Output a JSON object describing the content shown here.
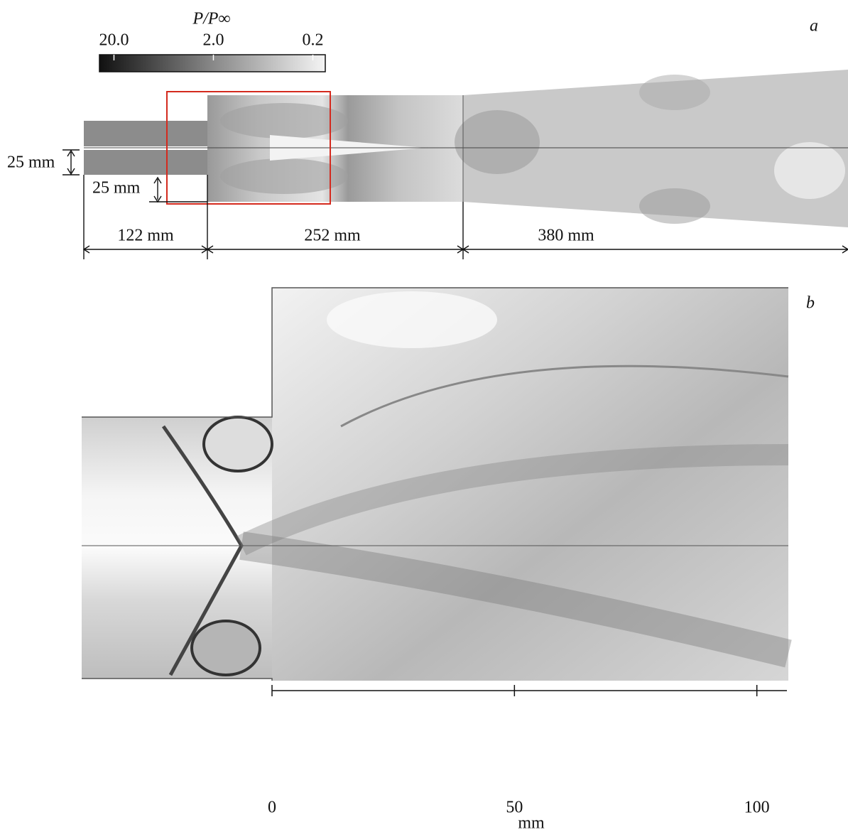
{
  "panel_a": {
    "label": "a",
    "colorbar": {
      "title": "P/P∞",
      "log": true,
      "lim": [
        28,
        0.15
      ],
      "ticks": [
        {
          "value": 20,
          "label": "20.0"
        },
        {
          "value": 2,
          "label": "2.0"
        },
        {
          "value": 0.2,
          "label": "0.2"
        }
      ]
    },
    "dimensions": {
      "inlet_height": "25 mm",
      "step_height": "25 mm",
      "inlet_length": "122 mm",
      "duct_length": "252 mm",
      "diffuser_length": "380 mm"
    }
  },
  "panel_b": {
    "label": "b",
    "axis": {
      "label": "mm",
      "xlim": [
        0,
        106.2
      ],
      "xticks": [
        0,
        50,
        100
      ]
    }
  }
}
